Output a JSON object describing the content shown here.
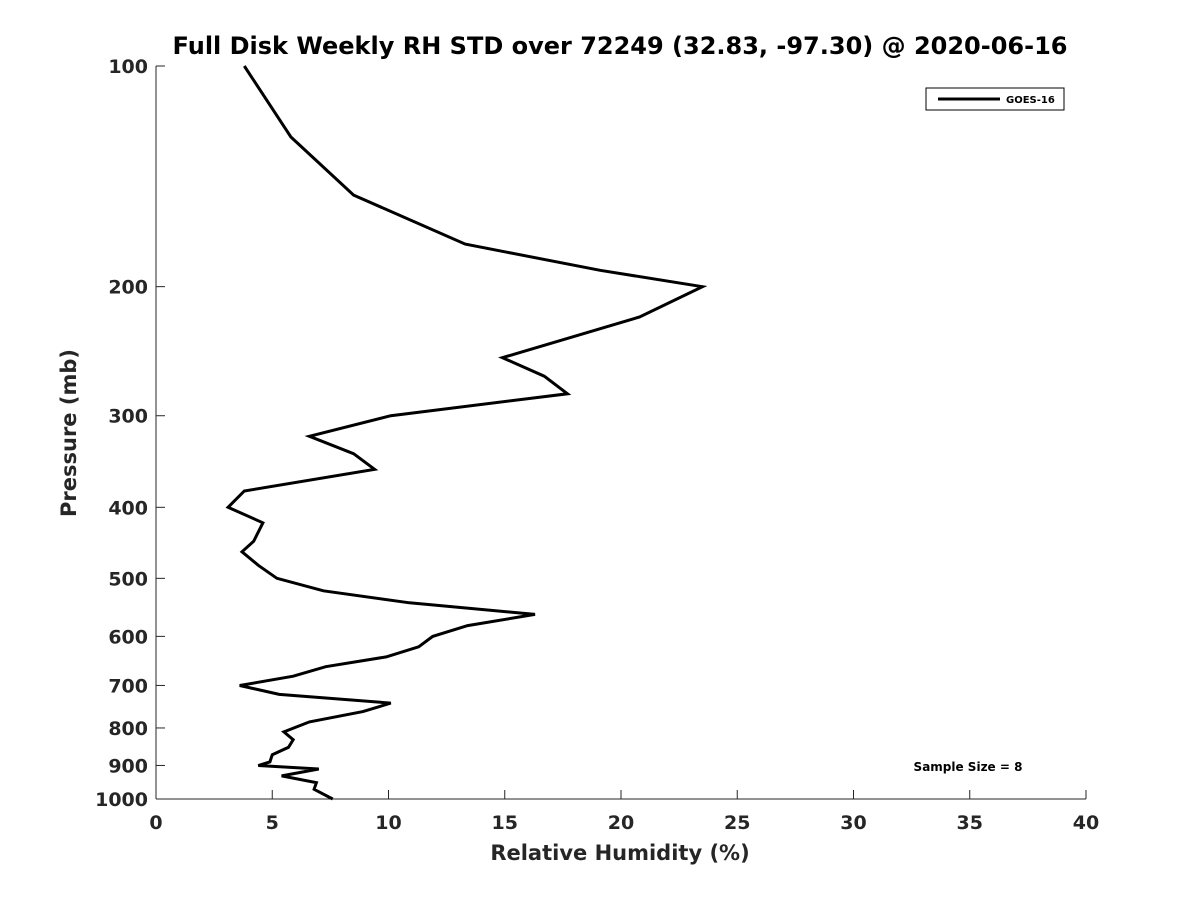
{
  "chart_data": {
    "type": "line",
    "title": "Full Disk Weekly RH STD over 72249 (32.83, -97.30) @ 2020-06-16",
    "xlabel": "Relative Humidity (%)",
    "ylabel": "Pressure (mb)",
    "xlim": [
      0,
      40
    ],
    "ylim": [
      100,
      1000
    ],
    "y_scale": "log",
    "y_reversed": true,
    "xticks": [
      0,
      5,
      10,
      15,
      20,
      25,
      30,
      35,
      40
    ],
    "yticks": [
      100,
      200,
      300,
      400,
      500,
      600,
      700,
      800,
      900,
      1000
    ],
    "grid": false,
    "legend_position": "top-right",
    "annotation": "Sample Size = 8",
    "series": [
      {
        "name": "GOES-16",
        "color": "#000000",
        "points": [
          [
            3.8,
            100
          ],
          [
            5.8,
            125
          ],
          [
            8.5,
            150
          ],
          [
            13.3,
            175
          ],
          [
            19.1,
            190
          ],
          [
            23.5,
            200
          ],
          [
            20.8,
            220
          ],
          [
            14.9,
            250
          ],
          [
            16.7,
            265
          ],
          [
            17.7,
            280
          ],
          [
            10.1,
            300
          ],
          [
            6.6,
            320
          ],
          [
            8.5,
            338
          ],
          [
            9.4,
            355
          ],
          [
            3.8,
            380
          ],
          [
            3.1,
            400
          ],
          [
            4.6,
            420
          ],
          [
            4.2,
            445
          ],
          [
            3.7,
            460
          ],
          [
            4.4,
            480
          ],
          [
            5.2,
            500
          ],
          [
            7.2,
            520
          ],
          [
            10.9,
            540
          ],
          [
            16.3,
            560
          ],
          [
            13.4,
            580
          ],
          [
            11.9,
            600
          ],
          [
            11.3,
            620
          ],
          [
            9.9,
            640
          ],
          [
            7.3,
            660
          ],
          [
            5.9,
            680
          ],
          [
            3.6,
            700
          ],
          [
            5.3,
            720
          ],
          [
            10.1,
            740
          ],
          [
            8.9,
            760
          ],
          [
            6.6,
            785
          ],
          [
            5.5,
            810
          ],
          [
            5.9,
            830
          ],
          [
            5.7,
            850
          ],
          [
            5.0,
            870
          ],
          [
            4.9,
            890
          ],
          [
            4.4,
            900
          ],
          [
            7.0,
            910
          ],
          [
            5.4,
            930
          ],
          [
            6.9,
            950
          ],
          [
            6.8,
            970
          ],
          [
            7.6,
            1000
          ]
        ]
      }
    ]
  }
}
